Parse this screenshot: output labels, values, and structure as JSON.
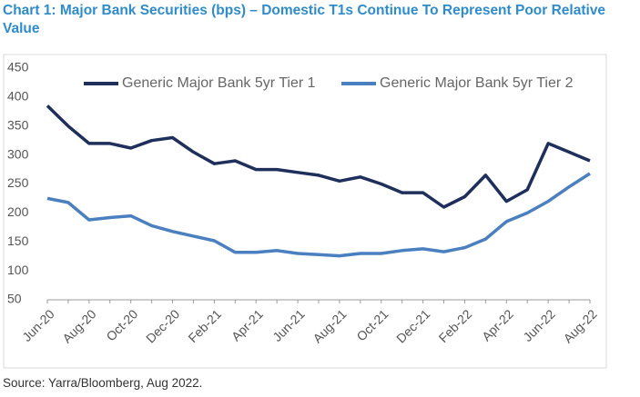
{
  "chart_data": {
    "type": "line",
    "title": "Chart 1: Major Bank Securities (bps) – Domestic T1s Continue To Represent Poor Relative Value",
    "source": "Source: Yarra/Bloomberg, Aug 2022.",
    "categories": [
      "Jun-20",
      null,
      "Aug-20",
      null,
      "Oct-20",
      null,
      "Dec-20",
      null,
      "Feb-21",
      null,
      "Apr-21",
      null,
      "Jun-21",
      null,
      "Aug-21",
      null,
      "Oct-21",
      null,
      "Dec-21",
      null,
      "Feb-22",
      null,
      "Apr-22",
      null,
      "Jun-22",
      null,
      "Aug-22"
    ],
    "series": [
      {
        "name": "Generic Major Bank 5yr Tier 1",
        "color": "#1f2f5c",
        "values": [
          385,
          350,
          320,
          320,
          312,
          325,
          330,
          305,
          285,
          290,
          275,
          275,
          270,
          265,
          255,
          262,
          250,
          235,
          235,
          210,
          228,
          265,
          220,
          240,
          320,
          305,
          290
        ]
      },
      {
        "name": "Generic Major Bank 5yr Tier 2",
        "color": "#4a7fc0",
        "values": [
          225,
          218,
          188,
          192,
          195,
          178,
          168,
          160,
          152,
          132,
          132,
          135,
          130,
          128,
          126,
          130,
          130,
          135,
          138,
          133,
          140,
          155,
          185,
          200,
          220,
          245,
          268
        ]
      }
    ],
    "ylim": [
      50,
      450
    ],
    "yticks": [
      50,
      100,
      150,
      200,
      250,
      300,
      350,
      400,
      450
    ]
  }
}
